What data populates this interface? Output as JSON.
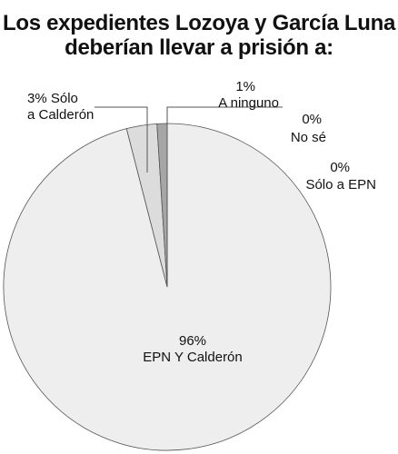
{
  "chart_data": {
    "type": "pie",
    "title_lines": [
      "Los expedientes Lozoya y García Luna",
      "deberían llevar a prisión a:"
    ],
    "slices": [
      {
        "label": "EPN Y Calderón",
        "value": 96,
        "value_text": "96%",
        "color": "#eeeeee"
      },
      {
        "label": "Sólo a Calderón",
        "value": 3,
        "value_text": "3%",
        "color": "#dcdcdc"
      },
      {
        "label": "A ninguno",
        "value": 1,
        "value_text": "1%",
        "color": "#a6a6a6"
      },
      {
        "label": "No sé",
        "value": 0,
        "value_text": "0%",
        "color": "#bdbdbd"
      },
      {
        "label": "Sólo a EPN",
        "value": 0,
        "value_text": "0%",
        "color": "#bdbdbd"
      }
    ]
  }
}
